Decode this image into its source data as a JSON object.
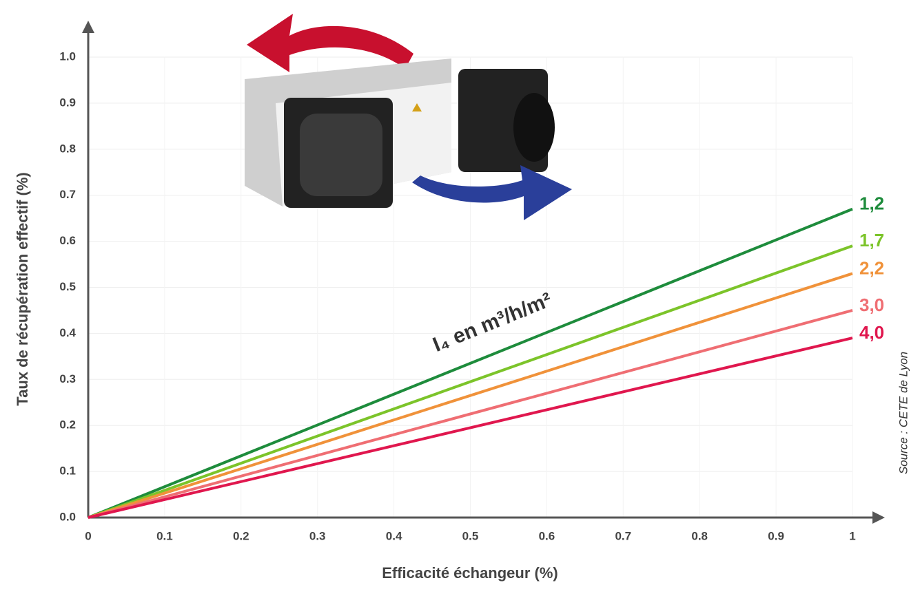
{
  "chart_data": {
    "type": "line",
    "y_label": "Taux de récupération effectif (%)",
    "x_label": "Efficacité échangeur (%)",
    "annotation": "I₄ en m³/h/m²",
    "source": "Source : CETE de Lyon",
    "x": [
      0,
      1
    ],
    "series": [
      {
        "name": "1,2",
        "color": "#1e8c3c",
        "values": [
          0,
          0.67
        ]
      },
      {
        "name": "1,7",
        "color": "#7cc42a",
        "values": [
          0,
          0.59
        ]
      },
      {
        "name": "2,2",
        "color": "#f0923a",
        "values": [
          0,
          0.53
        ]
      },
      {
        "name": "3,0",
        "color": "#ef6e73",
        "values": [
          0,
          0.45
        ]
      },
      {
        "name": "4,0",
        "color": "#e0174e",
        "values": [
          0,
          0.39
        ]
      }
    ],
    "xlim": [
      0,
      1
    ],
    "xticks": [
      0,
      0.1,
      0.2,
      0.3,
      0.4,
      0.5,
      0.6,
      0.7,
      0.8,
      0.9,
      1
    ],
    "ylim": [
      0,
      1
    ],
    "yticks": [
      {
        "value": 0,
        "label": "0.0"
      },
      0.1,
      0.2,
      0.3,
      0.4,
      0.5,
      0.6,
      0.7,
      0.8,
      0.9,
      {
        "value": 1,
        "label": "1.0"
      }
    ],
    "grid": true
  }
}
